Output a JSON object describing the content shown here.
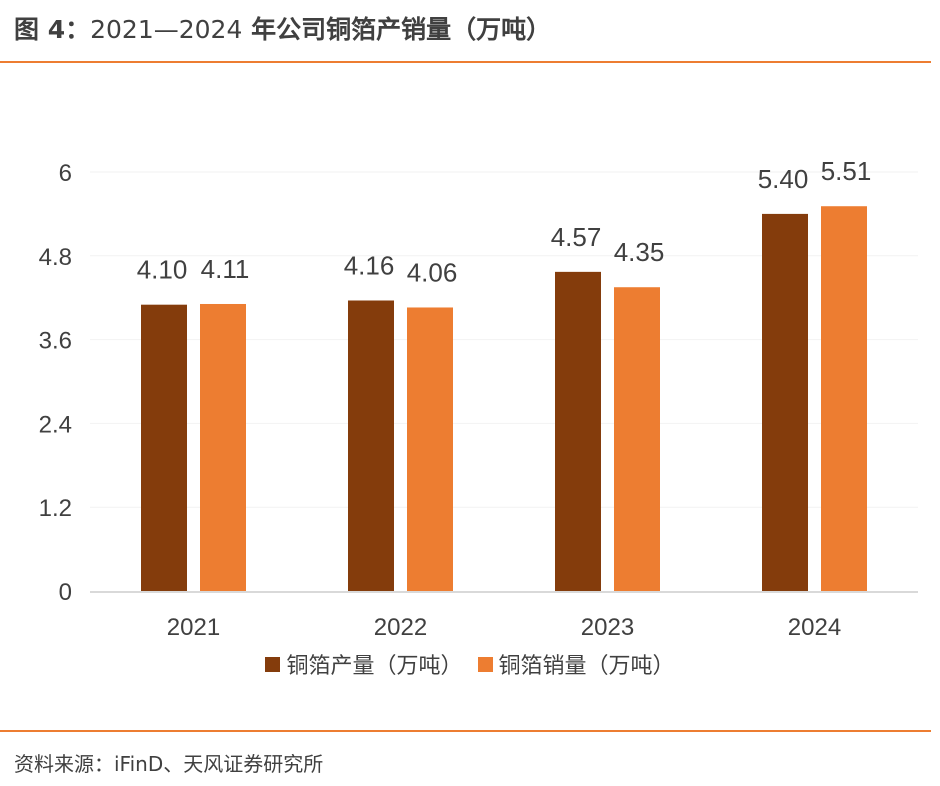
{
  "header": {
    "figure_label": "图 4：",
    "title_years": "2021—2024",
    "title_text": " 年公司铜箔产销量（万吨）"
  },
  "footer": {
    "source": "资料来源：iFinD、天风证券研究所"
  },
  "colors": {
    "accent_rule": "#ed7d31",
    "series_production": "#843c0c",
    "series_sales": "#ed7d31",
    "axis_line": "#d9d9d9",
    "gridline": "#f2f2f2",
    "text": "#404040"
  },
  "chart_data": {
    "type": "bar",
    "title": "2021—2024 年公司铜箔产销量（万吨）",
    "xlabel": "",
    "ylabel": "",
    "categories": [
      "2021",
      "2022",
      "2023",
      "2024"
    ],
    "series": [
      {
        "name": "铜箔产量（万吨）",
        "values": [
          4.1,
          4.16,
          4.57,
          5.4
        ],
        "labels": [
          "4.10",
          "4.16",
          "4.57",
          "5.40"
        ],
        "color": "#843c0c"
      },
      {
        "name": "铜箔销量（万吨）",
        "values": [
          4.11,
          4.06,
          4.35,
          5.51
        ],
        "labels": [
          "4.11",
          "4.06",
          "4.35",
          "5.51"
        ],
        "color": "#ed7d31"
      }
    ],
    "ylim": [
      0,
      6
    ],
    "yticks": [
      0,
      1.2,
      2.4,
      3.6,
      4.8,
      6
    ],
    "ytick_labels": [
      "0",
      "1.2",
      "2.4",
      "3.6",
      "4.8",
      "6"
    ],
    "grid": true,
    "legend_position": "bottom"
  }
}
